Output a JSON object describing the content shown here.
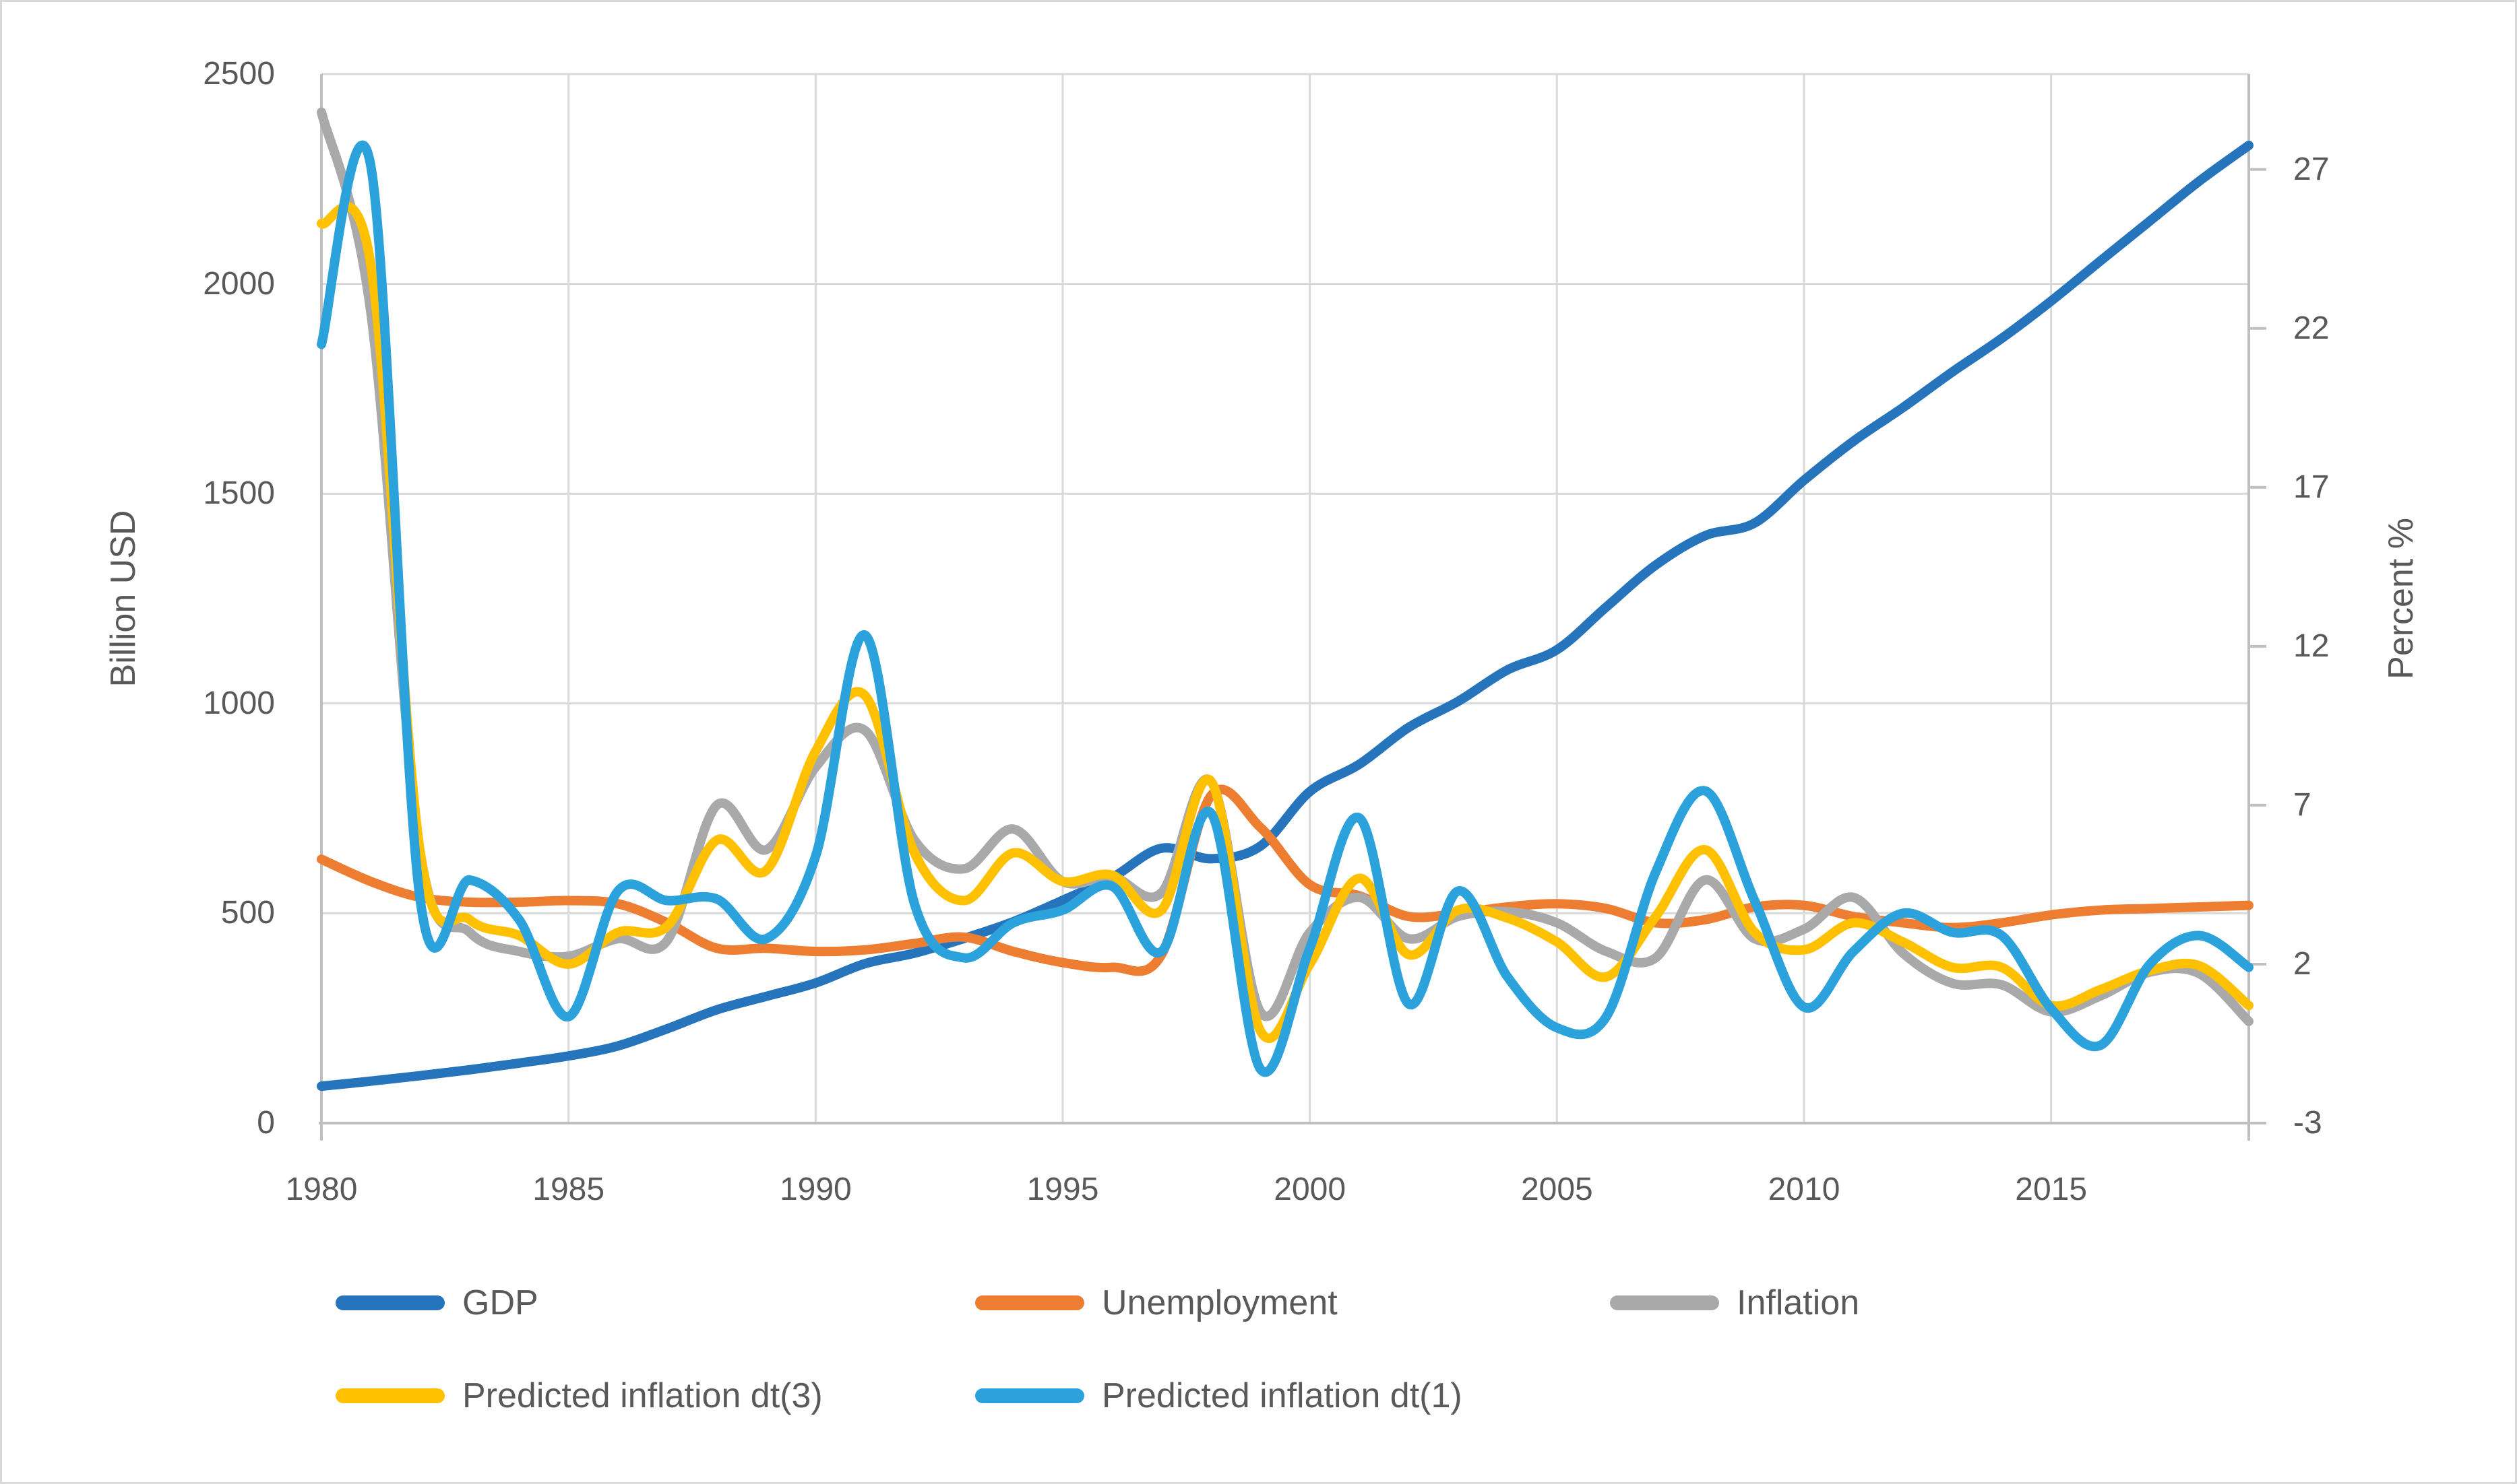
{
  "chart_data": {
    "type": "line",
    "title": "",
    "x": [
      1980,
      1981,
      1982,
      1983,
      1984,
      1985,
      1986,
      1987,
      1988,
      1989,
      1990,
      1991,
      1992,
      1993,
      1994,
      1995,
      1996,
      1997,
      1998,
      1999,
      2000,
      2001,
      2002,
      2003,
      2004,
      2005,
      2006,
      2007,
      2008,
      2009,
      2010,
      2011,
      2012,
      2013,
      2014,
      2015,
      2016,
      2017,
      2018,
      2019
    ],
    "x_tick_years": [
      1980,
      1985,
      1990,
      1995,
      2000,
      2005,
      2010,
      2015
    ],
    "x_tick_labels": [
      "1980",
      "1985",
      "1990",
      "1995",
      "2000",
      "2005",
      "2010",
      "2015"
    ],
    "grid": true,
    "smoothed_lines": true,
    "legend_position": "bottom",
    "y_left": {
      "label": "Billion USD",
      "min": 0,
      "max": 2500,
      "ticks": [
        0,
        500,
        1000,
        1500,
        2000,
        2500
      ],
      "tick_labels": [
        "0",
        "500",
        "1000",
        "1500",
        "2000",
        "2500"
      ]
    },
    "y_right": {
      "label": "Percent %",
      "min": -3,
      "max": 30,
      "ticks": [
        -3,
        2,
        7,
        12,
        17,
        22,
        27
      ],
      "tick_labels": [
        "-3",
        "2",
        "7",
        "12",
        "17",
        "22",
        "27"
      ]
    },
    "series": [
      {
        "name": "GDP",
        "axis": "left",
        "color": "#2574BC",
        "values": [
          88,
          100,
          113,
          127,
          143,
          160,
          184,
          225,
          270,
          302,
          334,
          380,
          405,
          440,
          480,
          531,
          585,
          655,
          630,
          660,
          790,
          855,
          943,
          1005,
          1080,
          1128,
          1230,
          1330,
          1400,
          1430,
          1532,
          1625,
          1705,
          1790,
          1870,
          1959,
          2055,
          2150,
          2245,
          2330
        ]
      },
      {
        "name": "Unemployment",
        "axis": "right",
        "color": "#ED7D31",
        "values": [
          5.3,
          4.6,
          4.1,
          3.95,
          3.95,
          4.0,
          3.9,
          3.3,
          2.5,
          2.5,
          2.4,
          2.45,
          2.65,
          2.85,
          2.4,
          2.05,
          1.9,
          2.3,
          7.3,
          6.3,
          4.5,
          4.15,
          3.5,
          3.6,
          3.8,
          3.9,
          3.75,
          3.3,
          3.4,
          3.8,
          3.85,
          3.5,
          3.3,
          3.15,
          3.3,
          3.55,
          3.7,
          3.75,
          3.8,
          3.85
        ]
      },
      {
        "name": "Inflation",
        "axis": "right",
        "color": "#A9A9A9",
        "values": [
          28.8,
          22.5,
          5.5,
          3.0,
          2.4,
          2.25,
          2.8,
          2.75,
          7.0,
          5.6,
          8.2,
          9.35,
          5.9,
          5.0,
          6.25,
          4.6,
          4.75,
          4.25,
          7.75,
          0.5,
          3.0,
          4.1,
          2.8,
          3.5,
          3.65,
          3.3,
          2.4,
          2.2,
          4.65,
          2.8,
          3.1,
          4.1,
          2.35,
          1.4,
          1.35,
          0.5,
          1.0,
          1.75,
          1.7,
          0.2
        ]
      },
      {
        "name": "Predicted inflation dt(3)",
        "axis": "right",
        "color": "#FFC000",
        "values": [
          25.3,
          24.0,
          5.5,
          3.4,
          2.9,
          2.0,
          3.0,
          3.2,
          5.9,
          4.95,
          8.7,
          10.45,
          5.5,
          4.0,
          5.5,
          4.6,
          4.8,
          3.7,
          7.75,
          -0.1,
          2.0,
          4.7,
          2.3,
          3.7,
          3.45,
          2.7,
          1.6,
          3.5,
          5.6,
          3.0,
          2.45,
          3.3,
          2.7,
          1.9,
          1.9,
          0.7,
          1.2,
          1.8,
          1.95,
          0.7
        ]
      },
      {
        "name": "Predicted inflation dt(1)",
        "axis": "right",
        "color": "#2CA2DC",
        "values": [
          21.5,
          27.1,
          4.0,
          4.65,
          3.4,
          0.35,
          4.3,
          4.0,
          4.05,
          2.8,
          5.4,
          12.35,
          3.9,
          2.2,
          3.3,
          3.7,
          4.45,
          2.4,
          6.75,
          -1.3,
          2.5,
          6.6,
          0.75,
          4.3,
          1.6,
          0.0,
          0.35,
          4.9,
          7.45,
          4.0,
          0.65,
          2.4,
          3.6,
          3.0,
          2.9,
          0.6,
          -0.55,
          2.0,
          2.9,
          1.9
        ]
      }
    ],
    "colors": {
      "grid": "#D9D9D9",
      "axis_line": "#BFBFBF",
      "text": "#595959",
      "background": "#FFFFFF"
    }
  },
  "legend": {
    "items": [
      {
        "label": "GDP"
      },
      {
        "label": "Unemployment"
      },
      {
        "label": "Inflation"
      },
      {
        "label": "Predicted inflation dt(3)"
      },
      {
        "label": "Predicted inflation dt(1)"
      }
    ]
  }
}
